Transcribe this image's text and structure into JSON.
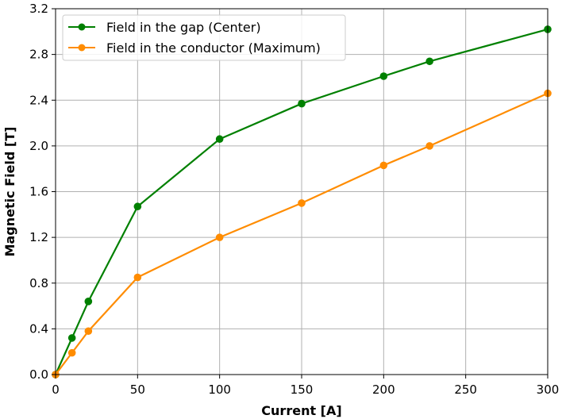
{
  "chart_data": {
    "type": "line",
    "xlabel": "Current [A]",
    "ylabel": "Magnetic Field [T]",
    "xlim": [
      0,
      300
    ],
    "ylim": [
      0,
      3.2
    ],
    "xticks": [
      "0",
      "50",
      "100",
      "150",
      "200",
      "250",
      "300"
    ],
    "yticks": [
      "0.0",
      "0.4",
      "0.8",
      "1.2",
      "1.6",
      "2.0",
      "2.4",
      "2.8",
      "3.2"
    ],
    "grid": true,
    "legend_position": "top-left",
    "series": [
      {
        "name": "Field in the gap (Center)",
        "color": "#008000",
        "x": [
          0,
          10,
          20,
          50,
          100,
          150,
          200,
          228,
          300
        ],
        "y": [
          0.0,
          0.32,
          0.64,
          1.47,
          2.06,
          2.37,
          2.61,
          2.74,
          3.02
        ]
      },
      {
        "name": "Field in the conductor (Maximum)",
        "color": "#ff8c00",
        "x": [
          0,
          10,
          20,
          50,
          100,
          150,
          200,
          228,
          300
        ],
        "y": [
          0.0,
          0.19,
          0.38,
          0.85,
          1.2,
          1.5,
          1.83,
          2.0,
          2.46
        ]
      }
    ]
  }
}
